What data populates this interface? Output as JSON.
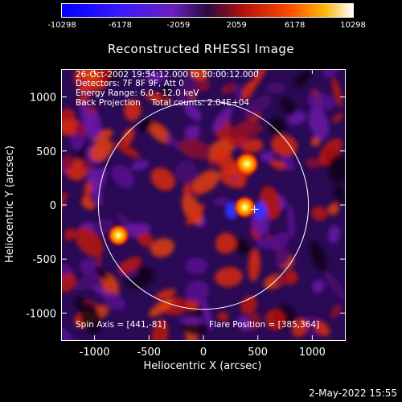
{
  "colorbar": {
    "ticks": [
      "-10298",
      "-6178",
      "-2059",
      "2059",
      "6178",
      "10298"
    ],
    "min": -10298,
    "max": 10298
  },
  "chart_data": {
    "type": "heatmap",
    "title": "Reconstructed RHESSI Image",
    "xlabel": "Heliocentric X (arcsec)",
    "ylabel": "Heliocentric Y (arcsec)",
    "xlim": [
      -1300,
      1300
    ],
    "ylim": [
      -1250,
      1250
    ],
    "xticks": [
      -1000,
      -500,
      0,
      500,
      1000
    ],
    "yticks": [
      -1000,
      -500,
      0,
      500,
      1000
    ],
    "xtick_labels": [
      "-1000",
      "-500",
      "0",
      "500",
      "1000"
    ],
    "ytick_labels": [
      "-1000",
      "-500",
      "0",
      "500",
      "1000"
    ],
    "solar_limb_radius": 965,
    "sources": [
      {
        "x": 400,
        "y": 380,
        "value": 10298
      },
      {
        "x": 380,
        "y": -20,
        "value": 8500
      },
      {
        "x": -780,
        "y": -280,
        "value": 7800
      }
    ],
    "flare_marker": {
      "x": 470,
      "y": -40
    },
    "info_lines": [
      "26-Oct-2002 19:54:12.000 to 20:00:12.000",
      "Detectors: 7F 8F 9F, Att 0",
      "Energy Range: 6.0 - 12.0 keV",
      "Back Projection    Total counts: 2.04E+04"
    ],
    "spin_axis": "Spin Axis = [441,-81]",
    "flare_position": "Flare Position = [385,364]"
  },
  "footer_date": "2-May-2022 15:55"
}
